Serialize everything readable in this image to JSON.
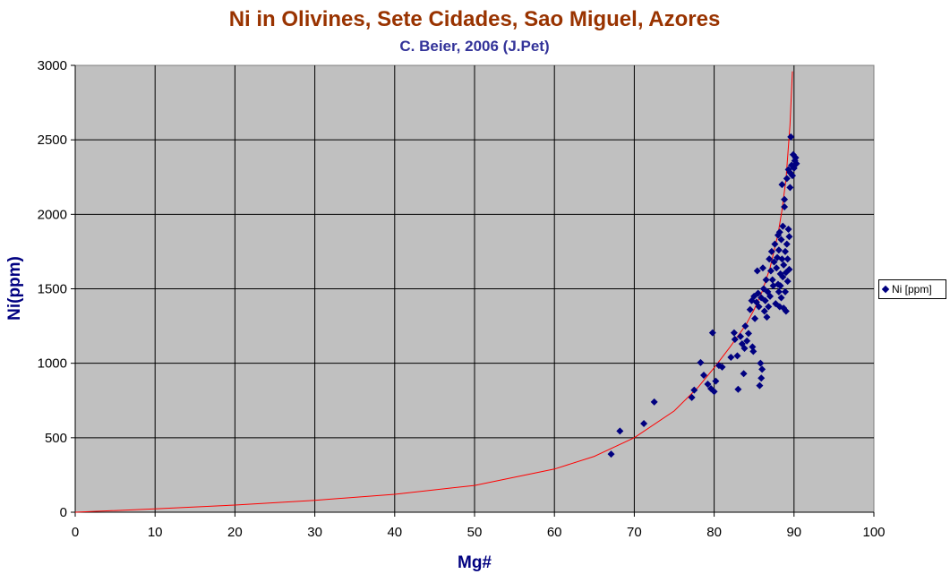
{
  "chart_data": {
    "type": "scatter",
    "title": "Ni in Olivines, Sete  Cidades, Sao Miguel, Azores",
    "subtitle": "C. Beier, 2006 (J.Pet)",
    "xlabel": "Mg#",
    "ylabel": "Ni(ppm)",
    "xlim": [
      0,
      100
    ],
    "ylim": [
      0,
      3000
    ],
    "xticks": [
      0,
      10,
      20,
      30,
      40,
      50,
      60,
      70,
      80,
      90,
      100
    ],
    "yticks": [
      0,
      500,
      1000,
      1500,
      2000,
      2500,
      3000
    ],
    "grid": true,
    "legend_position": "right",
    "colors": {
      "plot_background": "#c0c0c0",
      "marker": "#000080",
      "trend_line": "#ff0000",
      "title": "#993300",
      "subtitle": "#333399",
      "axis_title": "#000080"
    },
    "series": [
      {
        "name": "Ni [ppm]",
        "marker": "diamond",
        "points": [
          [
            67.1,
            390
          ],
          [
            68.2,
            545
          ],
          [
            71.2,
            595
          ],
          [
            72.5,
            740
          ],
          [
            77.2,
            770
          ],
          [
            77.5,
            820
          ],
          [
            78.3,
            1005
          ],
          [
            78.7,
            920
          ],
          [
            79.2,
            860
          ],
          [
            79.6,
            830
          ],
          [
            79.8,
            1205
          ],
          [
            80.0,
            810
          ],
          [
            80.2,
            880
          ],
          [
            80.6,
            985
          ],
          [
            81.0,
            975
          ],
          [
            82.1,
            1040
          ],
          [
            82.5,
            1205
          ],
          [
            82.6,
            1160
          ],
          [
            82.9,
            1050
          ],
          [
            83.0,
            825
          ],
          [
            83.3,
            1180
          ],
          [
            83.5,
            1130
          ],
          [
            83.7,
            930
          ],
          [
            83.8,
            1100
          ],
          [
            83.9,
            1250
          ],
          [
            84.1,
            1150
          ],
          [
            84.3,
            1200
          ],
          [
            84.5,
            1360
          ],
          [
            84.7,
            1420
          ],
          [
            84.8,
            1110
          ],
          [
            84.9,
            1080
          ],
          [
            85.0,
            1450
          ],
          [
            85.1,
            1300
          ],
          [
            85.3,
            1410
          ],
          [
            85.4,
            1620
          ],
          [
            85.5,
            1470
          ],
          [
            85.6,
            1380
          ],
          [
            85.7,
            850
          ],
          [
            85.8,
            1000
          ],
          [
            85.9,
            900
          ],
          [
            85.9,
            1440
          ],
          [
            86.0,
            960
          ],
          [
            86.1,
            1640
          ],
          [
            86.2,
            1500
          ],
          [
            86.3,
            1350
          ],
          [
            86.4,
            1420
          ],
          [
            86.5,
            1560
          ],
          [
            86.6,
            1310
          ],
          [
            86.7,
            1480
          ],
          [
            86.8,
            1380
          ],
          [
            86.9,
            1700
          ],
          [
            87.0,
            1450
          ],
          [
            87.1,
            1620
          ],
          [
            87.2,
            1750
          ],
          [
            87.3,
            1560
          ],
          [
            87.4,
            1520
          ],
          [
            87.5,
            1680
          ],
          [
            87.6,
            1800
          ],
          [
            87.7,
            1400
          ],
          [
            87.8,
            1640
          ],
          [
            87.9,
            1710
          ],
          [
            88.0,
            1860
          ],
          [
            88.0,
            1530
          ],
          [
            88.1,
            1480
          ],
          [
            88.1,
            1760
          ],
          [
            88.2,
            1880
          ],
          [
            88.2,
            1380
          ],
          [
            88.3,
            1600
          ],
          [
            88.3,
            1520
          ],
          [
            88.4,
            1830
          ],
          [
            88.4,
            1440
          ],
          [
            88.5,
            1700
          ],
          [
            88.5,
            2200
          ],
          [
            88.6,
            1580
          ],
          [
            88.6,
            1920
          ],
          [
            88.7,
            1660
          ],
          [
            88.7,
            1370
          ],
          [
            88.8,
            2100
          ],
          [
            88.8,
            2050
          ],
          [
            88.9,
            1750
          ],
          [
            88.9,
            1480
          ],
          [
            89.0,
            1610
          ],
          [
            89.0,
            1350
          ],
          [
            89.1,
            1800
          ],
          [
            89.1,
            2240
          ],
          [
            89.2,
            1700
          ],
          [
            89.2,
            1550
          ],
          [
            89.3,
            1900
          ],
          [
            89.3,
            2300
          ],
          [
            89.4,
            1630
          ],
          [
            89.4,
            1850
          ],
          [
            89.5,
            2280
          ],
          [
            89.5,
            2180
          ],
          [
            89.6,
            2520
          ],
          [
            89.7,
            2330
          ],
          [
            89.8,
            2260
          ],
          [
            89.9,
            2400
          ],
          [
            90.0,
            2310
          ],
          [
            90.1,
            2360
          ],
          [
            90.2,
            2380
          ],
          [
            90.3,
            2340
          ]
        ]
      }
    ],
    "trend_line": {
      "points": [
        [
          0,
          0
        ],
        [
          10,
          22
        ],
        [
          20,
          48
        ],
        [
          30,
          80
        ],
        [
          40,
          120
        ],
        [
          50,
          180
        ],
        [
          60,
          290
        ],
        [
          65,
          375
        ],
        [
          70,
          500
        ],
        [
          75,
          680
        ],
        [
          78,
          840
        ],
        [
          80,
          970
        ],
        [
          82,
          1110
        ],
        [
          84,
          1260
        ],
        [
          85,
          1360
        ],
        [
          86,
          1480
        ],
        [
          87,
          1640
        ],
        [
          88,
          1870
        ],
        [
          88.5,
          2030
        ],
        [
          89,
          2240
        ],
        [
          89.5,
          2600
        ],
        [
          89.8,
          2960
        ]
      ]
    }
  }
}
